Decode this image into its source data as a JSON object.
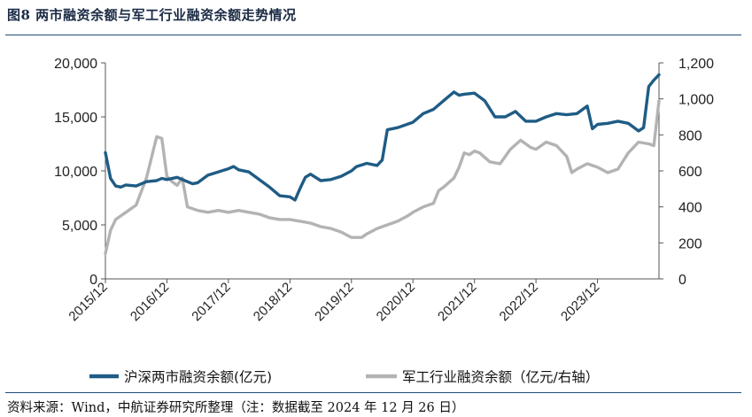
{
  "title": "图8  两市融资余额与军工行业融资余额走势情况",
  "source": "资料来源：Wind，中航证券研究所整理（注：数据截至 2024 年 12 月 26 日）",
  "colors": {
    "series1": "#1f5c85",
    "series2": "#b3b3b3",
    "rule": "#1f4e79"
  },
  "chart_data": {
    "type": "line",
    "x_axis": {
      "ticks": [
        "2015/12",
        "2016/12",
        "2017/12",
        "2018/12",
        "2019/12",
        "2020/12",
        "2021/12",
        "2022/12",
        "2023/12"
      ],
      "range": [
        "2015/12",
        "2024/12"
      ]
    },
    "y_left": {
      "ticks": [
        "0",
        "5,000",
        "10,000",
        "15,000",
        "20,000"
      ],
      "range": [
        0,
        20000
      ]
    },
    "y_right": {
      "ticks": [
        "0",
        "200",
        "400",
        "600",
        "800",
        "1,000",
        "1,200"
      ],
      "range": [
        0,
        1200
      ]
    },
    "grid": false,
    "legend_position": "bottom",
    "series": [
      {
        "name": "沪深两市融资余额(亿元)",
        "axis": "left",
        "points": [
          [
            "2015-12",
            11700
          ],
          [
            "2016-01",
            9300
          ],
          [
            "2016-02",
            8600
          ],
          [
            "2016-03",
            8500
          ],
          [
            "2016-04",
            8700
          ],
          [
            "2016-06",
            8600
          ],
          [
            "2016-08",
            9000
          ],
          [
            "2016-10",
            9100
          ],
          [
            "2016-11",
            9300
          ],
          [
            "2016-12",
            9200
          ],
          [
            "2017-02",
            9400
          ],
          [
            "2017-04",
            9000
          ],
          [
            "2017-05",
            8800
          ],
          [
            "2017-06",
            8900
          ],
          [
            "2017-08",
            9600
          ],
          [
            "2017-10",
            9900
          ],
          [
            "2017-12",
            10200
          ],
          [
            "2018-01",
            10400
          ],
          [
            "2018-02",
            10100
          ],
          [
            "2018-04",
            9900
          ],
          [
            "2018-06",
            9200
          ],
          [
            "2018-08",
            8500
          ],
          [
            "2018-10",
            7700
          ],
          [
            "2018-12",
            7600
          ],
          [
            "2019-01",
            7300
          ],
          [
            "2019-02",
            8400
          ],
          [
            "2019-03",
            9400
          ],
          [
            "2019-04",
            9700
          ],
          [
            "2019-06",
            9100
          ],
          [
            "2019-08",
            9200
          ],
          [
            "2019-10",
            9500
          ],
          [
            "2019-12",
            10000
          ],
          [
            "2020-01",
            10400
          ],
          [
            "2020-03",
            10700
          ],
          [
            "2020-05",
            10500
          ],
          [
            "2020-06",
            11000
          ],
          [
            "2020-07",
            13800
          ],
          [
            "2020-09",
            14000
          ],
          [
            "2020-12",
            14500
          ],
          [
            "2021-02",
            15300
          ],
          [
            "2021-04",
            15700
          ],
          [
            "2021-06",
            16500
          ],
          [
            "2021-08",
            17300
          ],
          [
            "2021-09",
            17000
          ],
          [
            "2021-10",
            17100
          ],
          [
            "2021-12",
            17200
          ],
          [
            "2022-02",
            16500
          ],
          [
            "2022-04",
            15000
          ],
          [
            "2022-06",
            15000
          ],
          [
            "2022-08",
            15500
          ],
          [
            "2022-10",
            14600
          ],
          [
            "2022-12",
            14600
          ],
          [
            "2023-02",
            15000
          ],
          [
            "2023-04",
            15300
          ],
          [
            "2023-06",
            15200
          ],
          [
            "2023-08",
            15300
          ],
          [
            "2023-10",
            16000
          ],
          [
            "2023-11",
            13900
          ],
          [
            "2023-12",
            14300
          ],
          [
            "2024-02",
            14400
          ],
          [
            "2024-04",
            14600
          ],
          [
            "2024-06",
            14400
          ],
          [
            "2024-08",
            13700
          ],
          [
            "2024-09",
            14000
          ],
          [
            "2024-10",
            17800
          ],
          [
            "2024-11",
            18400
          ],
          [
            "2024-12",
            18900
          ]
        ]
      },
      {
        "name": "军工行业融资余额（亿元/右轴）",
        "axis": "right",
        "points": [
          [
            "2015-12",
            140
          ],
          [
            "2016-01",
            270
          ],
          [
            "2016-02",
            330
          ],
          [
            "2016-04",
            370
          ],
          [
            "2016-06",
            410
          ],
          [
            "2016-08",
            560
          ],
          [
            "2016-10",
            790
          ],
          [
            "2016-11",
            780
          ],
          [
            "2016-12",
            570
          ],
          [
            "2017-01",
            540
          ],
          [
            "2017-02",
            520
          ],
          [
            "2017-03",
            560
          ],
          [
            "2017-04",
            400
          ],
          [
            "2017-06",
            380
          ],
          [
            "2017-08",
            370
          ],
          [
            "2017-10",
            380
          ],
          [
            "2017-12",
            370
          ],
          [
            "2018-02",
            380
          ],
          [
            "2018-04",
            370
          ],
          [
            "2018-06",
            360
          ],
          [
            "2018-08",
            340
          ],
          [
            "2018-10",
            330
          ],
          [
            "2018-12",
            330
          ],
          [
            "2019-02",
            320
          ],
          [
            "2019-04",
            310
          ],
          [
            "2019-06",
            290
          ],
          [
            "2019-08",
            280
          ],
          [
            "2019-10",
            260
          ],
          [
            "2019-12",
            230
          ],
          [
            "2020-02",
            230
          ],
          [
            "2020-03",
            250
          ],
          [
            "2020-05",
            280
          ],
          [
            "2020-07",
            300
          ],
          [
            "2020-09",
            320
          ],
          [
            "2020-11",
            350
          ],
          [
            "2020-12",
            370
          ],
          [
            "2021-02",
            400
          ],
          [
            "2021-04",
            420
          ],
          [
            "2021-05",
            490
          ],
          [
            "2021-06",
            510
          ],
          [
            "2021-08",
            560
          ],
          [
            "2021-09",
            620
          ],
          [
            "2021-10",
            700
          ],
          [
            "2021-11",
            690
          ],
          [
            "2021-12",
            710
          ],
          [
            "2022-01",
            700
          ],
          [
            "2022-03",
            650
          ],
          [
            "2022-05",
            640
          ],
          [
            "2022-07",
            720
          ],
          [
            "2022-09",
            770
          ],
          [
            "2022-11",
            730
          ],
          [
            "2022-12",
            720
          ],
          [
            "2023-02",
            760
          ],
          [
            "2023-04",
            740
          ],
          [
            "2023-06",
            680
          ],
          [
            "2023-07",
            590
          ],
          [
            "2023-08",
            610
          ],
          [
            "2023-10",
            640
          ],
          [
            "2023-12",
            620
          ],
          [
            "2024-02",
            590
          ],
          [
            "2024-04",
            610
          ],
          [
            "2024-06",
            700
          ],
          [
            "2024-08",
            760
          ],
          [
            "2024-10",
            750
          ],
          [
            "2024-11",
            740
          ],
          [
            "2024-12",
            990
          ]
        ]
      }
    ]
  }
}
